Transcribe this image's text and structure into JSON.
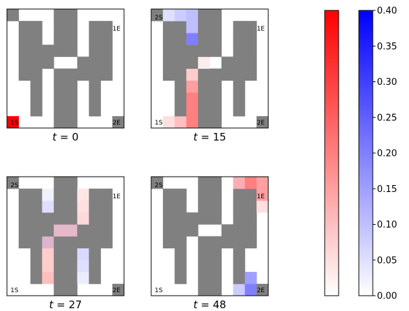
{
  "chart_data": {
    "type": "heatmap",
    "grid_size": [
      10,
      10
    ],
    "wall_color": "#808080",
    "colormaps": {
      "agent1": {
        "low": "#ffffff",
        "high": "#ff0000"
      },
      "agent2": {
        "low": "#ffffff",
        "high": "#0000ff"
      }
    },
    "walls": [
      [
        0,
        9
      ],
      [
        1,
        4
      ],
      [
        1,
        5
      ],
      [
        1,
        6
      ],
      [
        1,
        7
      ],
      [
        1,
        8
      ],
      [
        2,
        1
      ],
      [
        2,
        2
      ],
      [
        2,
        3
      ],
      [
        2,
        4
      ],
      [
        2,
        5
      ],
      [
        2,
        6
      ],
      [
        2,
        7
      ],
      [
        2,
        8
      ],
      [
        3,
        5
      ],
      [
        3,
        6
      ],
      [
        4,
        0
      ],
      [
        4,
        1
      ],
      [
        4,
        2
      ],
      [
        4,
        3
      ],
      [
        4,
        4
      ],
      [
        4,
        6
      ],
      [
        4,
        7
      ],
      [
        4,
        8
      ],
      [
        4,
        9
      ],
      [
        5,
        0
      ],
      [
        5,
        1
      ],
      [
        5,
        2
      ],
      [
        5,
        3
      ],
      [
        5,
        4
      ],
      [
        5,
        6
      ],
      [
        5,
        7
      ],
      [
        5,
        8
      ],
      [
        5,
        9
      ],
      [
        6,
        4
      ],
      [
        6,
        5
      ],
      [
        7,
        1
      ],
      [
        7,
        2
      ],
      [
        7,
        3
      ],
      [
        7,
        4
      ],
      [
        7,
        5
      ],
      [
        7,
        6
      ],
      [
        7,
        7
      ],
      [
        7,
        8
      ],
      [
        8,
        4
      ],
      [
        8,
        5
      ],
      [
        8,
        6
      ],
      [
        8,
        7
      ],
      [
        8,
        8
      ],
      [
        9,
        0
      ]
    ],
    "labels": [
      "1S",
      "1E",
      "2S",
      "2E"
    ],
    "panels": [
      {
        "title": "t = 0",
        "show_2s": false,
        "red": [
          [
            0,
            0,
            0.4
          ]
        ],
        "blue": [
          [
            0,
            9,
            0.4
          ]
        ]
      },
      {
        "title": "t = 15",
        "show_2s": true,
        "red": [
          [
            3,
            0,
            0.2
          ],
          [
            3,
            1,
            0.2
          ],
          [
            3,
            2,
            0.2
          ],
          [
            3,
            3,
            0.15
          ],
          [
            3,
            4,
            0.08
          ],
          [
            3,
            5,
            0.05
          ],
          [
            2,
            0,
            0.1
          ],
          [
            1,
            0,
            0.05
          ],
          [
            4,
            5,
            0.03
          ]
        ],
        "blue": [
          [
            0,
            9,
            0.03
          ],
          [
            1,
            9,
            0.05
          ],
          [
            2,
            9,
            0.08
          ],
          [
            3,
            9,
            0.1
          ],
          [
            3,
            8,
            0.1
          ],
          [
            3,
            7,
            0.2
          ],
          [
            3,
            6,
            0.2
          ],
          [
            3,
            5,
            0.05
          ],
          [
            2,
            8,
            0.03
          ],
          [
            1,
            8,
            0.02
          ]
        ]
      },
      {
        "title": "t = 27",
        "show_2s": true,
        "red": [
          [
            3,
            1,
            0.1
          ],
          [
            3,
            2,
            0.08
          ],
          [
            3,
            3,
            0.08
          ],
          [
            3,
            4,
            0.08
          ],
          [
            3,
            5,
            0.05
          ],
          [
            4,
            5,
            0.08
          ],
          [
            5,
            5,
            0.08
          ],
          [
            6,
            5,
            0.06
          ],
          [
            6,
            6,
            0.06
          ],
          [
            5,
            6,
            0.06
          ],
          [
            6,
            7,
            0.05
          ],
          [
            5,
            7,
            0.05
          ],
          [
            6,
            8,
            0.04
          ],
          [
            5,
            8,
            0.04
          ],
          [
            2,
            4,
            0.05
          ],
          [
            2,
            3,
            0.04
          ],
          [
            4,
            6,
            0.03
          ],
          [
            2,
            1,
            0.02
          ],
          [
            4,
            3,
            0.02
          ]
        ],
        "blue": [
          [
            3,
            5,
            0.06
          ],
          [
            3,
            4,
            0.05
          ],
          [
            3,
            6,
            0.05
          ],
          [
            3,
            7,
            0.05
          ],
          [
            2,
            5,
            0.05
          ],
          [
            2,
            4,
            0.05
          ],
          [
            2,
            3,
            0.05
          ],
          [
            4,
            5,
            0.04
          ],
          [
            5,
            5,
            0.04
          ],
          [
            6,
            4,
            0.08
          ],
          [
            6,
            3,
            0.06
          ],
          [
            6,
            2,
            0.05
          ],
          [
            5,
            3,
            0.06
          ],
          [
            5,
            2,
            0.06
          ],
          [
            4,
            2,
            0.04
          ],
          [
            4,
            3,
            0.04
          ],
          [
            6,
            1,
            0.03
          ],
          [
            5,
            1,
            0.03
          ],
          [
            4,
            1,
            0.02
          ],
          [
            2,
            2,
            0.02
          ],
          [
            2,
            1,
            0.01
          ],
          [
            3,
            8,
            0.02
          ]
        ]
      },
      {
        "title": "t = 48",
        "show_2s": true,
        "red": [
          [
            7,
            9,
            0.12
          ],
          [
            8,
            9,
            0.2
          ],
          [
            9,
            9,
            0.15
          ],
          [
            8,
            8,
            0.15
          ],
          [
            9,
            8,
            0.15
          ],
          [
            9,
            7,
            0.05
          ]
        ],
        "blue": [
          [
            9,
            0,
            0.15
          ],
          [
            8,
            0,
            0.2
          ],
          [
            8,
            1,
            0.15
          ],
          [
            7,
            0,
            0.08
          ],
          [
            7,
            9,
            0.01
          ]
        ]
      }
    ],
    "colorbars": [
      {
        "series": "agent1",
        "min": 0.0,
        "max": 0.4,
        "show_ticks": false
      },
      {
        "series": "agent2",
        "min": 0.0,
        "max": 0.4,
        "show_ticks": true
      }
    ],
    "ticks": [
      "0.00",
      "0.05",
      "0.10",
      "0.15",
      "0.20",
      "0.25",
      "0.30",
      "0.35",
      "0.40"
    ]
  }
}
